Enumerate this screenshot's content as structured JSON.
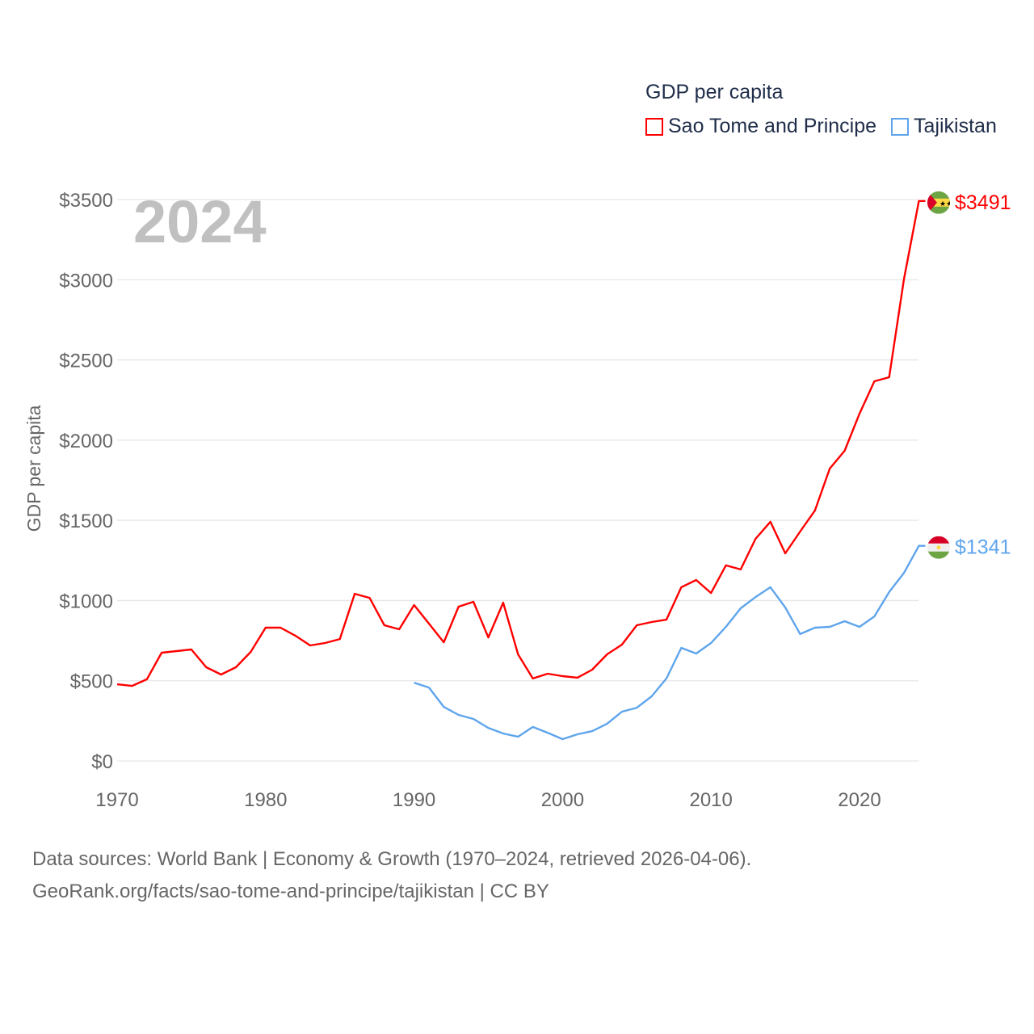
{
  "chart_data": {
    "type": "line",
    "title": "GDP per capita",
    "xlabel": "",
    "ylabel": "GDP per capita",
    "xlim": [
      1970,
      2024
    ],
    "ylim": [
      0,
      3500
    ],
    "year_label": "2024",
    "x_ticks": [
      "1970",
      "1980",
      "1990",
      "2000",
      "2010",
      "2020"
    ],
    "y_ticks": [
      "$0",
      "$500",
      "$1000",
      "$1500",
      "$2000",
      "$2500",
      "$3000",
      "$3500"
    ],
    "legend_position": "top-right",
    "grid": true,
    "series": [
      {
        "name": "Sao Tome and Principe",
        "color": "#ff0000",
        "end_label": "$3491",
        "flag": "sao-tome-and-principe",
        "x": [
          1970,
          1971,
          1972,
          1973,
          1974,
          1975,
          1976,
          1977,
          1978,
          1979,
          1980,
          1981,
          1982,
          1983,
          1984,
          1985,
          1986,
          1987,
          1988,
          1989,
          1990,
          1991,
          1992,
          1993,
          1994,
          1995,
          1996,
          1997,
          1998,
          1999,
          2000,
          2001,
          2002,
          2003,
          2004,
          2005,
          2006,
          2007,
          2008,
          2009,
          2010,
          2011,
          2012,
          2013,
          2014,
          2015,
          2016,
          2017,
          2018,
          2019,
          2020,
          2021,
          2022,
          2023,
          2024
        ],
        "values": [
          478,
          468,
          509,
          675,
          685,
          695,
          584,
          539,
          584,
          680,
          831,
          831,
          781,
          720,
          735,
          760,
          1042,
          1017,
          846,
          821,
          972,
          856,
          740,
          962,
          992,
          770,
          987,
          665,
          514,
          544,
          529,
          519,
          569,
          665,
          725,
          846,
          866,
          881,
          1083,
          1128,
          1047,
          1219,
          1194,
          1385,
          1491,
          1294,
          1430,
          1561,
          1823,
          1934,
          2165,
          2367,
          2392,
          3006,
          3491
        ]
      },
      {
        "name": "Tajikistan",
        "color": "#5fa5ec",
        "end_label": "$1341",
        "flag": "tajikistan",
        "x": [
          1990,
          1991,
          1992,
          1993,
          1994,
          1995,
          1996,
          1997,
          1998,
          1999,
          2000,
          2001,
          2002,
          2003,
          2004,
          2005,
          2006,
          2007,
          2008,
          2009,
          2010,
          2011,
          2012,
          2013,
          2014,
          2015,
          2016,
          2017,
          2018,
          2019,
          2020,
          2021,
          2022,
          2023,
          2024
        ],
        "values": [
          488,
          458,
          337,
          287,
          262,
          206,
          171,
          151,
          212,
          176,
          136,
          166,
          186,
          232,
          307,
          332,
          403,
          514,
          705,
          670,
          735,
          836,
          952,
          1022,
          1083,
          957,
          791,
          831,
          836,
          871,
          836,
          901,
          1053,
          1173,
          1341
        ]
      }
    ]
  },
  "footer": {
    "line1": "Data sources: World Bank | Economy & Growth (1970–2024, retrieved 2026-04-06).",
    "line2": "GeoRank.org/facts/sao-tome-and-principe/tajikistan | CC BY"
  }
}
